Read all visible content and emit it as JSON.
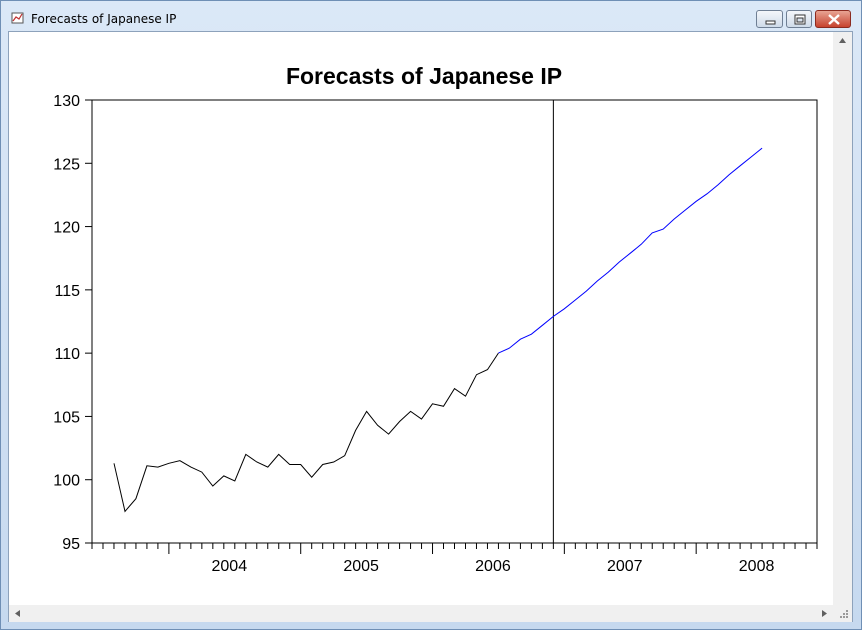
{
  "window": {
    "title": "Forecasts of Japanese IP"
  },
  "icons": {
    "app": "app-graph-icon",
    "minimize": "minimize-icon",
    "maximize": "maximize-icon",
    "close": "close-icon",
    "scroll_up": "scroll-up-arrow-icon",
    "scroll_left": "scroll-left-arrow-icon",
    "scroll_right": "scroll-right-arrow-icon",
    "resize_grip": "resize-grip-icon"
  },
  "colors": {
    "actual_line": "#000000",
    "forecast_line": "#0000ff",
    "window_close": "#c7432f"
  },
  "chart_data": {
    "type": "line",
    "title": "Forecasts of Japanese IP",
    "xlabel": "",
    "ylabel": "",
    "ylim": [
      95,
      130
    ],
    "yticks": [
      95,
      100,
      105,
      110,
      115,
      120,
      125,
      130
    ],
    "xlim": [
      "2003-06",
      "2008-12"
    ],
    "x_tick_labels": [
      "2004",
      "2005",
      "2006",
      "2007",
      "2008"
    ],
    "divider_at": "2006-12",
    "grid": false,
    "legend": "none",
    "x": [
      "2003-08",
      "2003-09",
      "2003-10",
      "2003-11",
      "2003-12",
      "2004-01",
      "2004-02",
      "2004-03",
      "2004-04",
      "2004-05",
      "2004-06",
      "2004-07",
      "2004-08",
      "2004-09",
      "2004-10",
      "2004-11",
      "2004-12",
      "2005-01",
      "2005-02",
      "2005-03",
      "2005-04",
      "2005-05",
      "2005-06",
      "2005-07",
      "2005-08",
      "2005-09",
      "2005-10",
      "2005-11",
      "2005-12",
      "2006-01",
      "2006-02",
      "2006-03",
      "2006-04",
      "2006-05",
      "2006-06",
      "2006-07",
      "2006-08",
      "2006-09",
      "2006-10",
      "2006-11",
      "2006-12",
      "2007-01",
      "2007-02",
      "2007-03",
      "2007-04",
      "2007-05",
      "2007-06",
      "2007-07",
      "2007-08",
      "2007-09",
      "2007-10",
      "2007-11",
      "2007-12",
      "2008-01",
      "2008-02",
      "2008-03",
      "2008-04",
      "2008-05",
      "2008-06",
      "2008-07",
      "2008-08",
      "2008-09",
      "2008-10",
      "2008-11",
      "2008-12"
    ],
    "series": [
      {
        "color": "#000000",
        "values": [
          101.3,
          97.5,
          98.5,
          101.1,
          101.0,
          101.3,
          101.5,
          101.0,
          100.6,
          99.5,
          100.3,
          99.9,
          102.0,
          101.4,
          101.0,
          102.0,
          101.2,
          101.2,
          100.2,
          101.2,
          101.4,
          101.9,
          103.9,
          105.4,
          104.3,
          103.6,
          104.6,
          105.4,
          104.8,
          106.0,
          105.8,
          107.2,
          106.6,
          108.3,
          108.7,
          110.0,
          null,
          null,
          null,
          null,
          null,
          null,
          null,
          null,
          null,
          null,
          null,
          null,
          null,
          null,
          null,
          null,
          null,
          null,
          null,
          null,
          null,
          null,
          null,
          null,
          null,
          null,
          null,
          null,
          null
        ]
      },
      {
        "color": "#0000ff",
        "values": [
          null,
          null,
          null,
          null,
          null,
          null,
          null,
          null,
          null,
          null,
          null,
          null,
          null,
          null,
          null,
          null,
          null,
          null,
          null,
          null,
          null,
          null,
          null,
          null,
          null,
          null,
          null,
          null,
          null,
          null,
          null,
          null,
          null,
          null,
          null,
          110.0,
          110.4,
          111.1,
          111.5,
          112.2,
          112.9,
          113.5,
          114.2,
          114.9,
          115.7,
          116.4,
          117.2,
          117.9,
          118.6,
          119.5,
          119.8,
          120.6,
          121.3,
          122.0,
          122.6,
          123.3,
          124.1,
          124.8,
          125.5,
          126.2,
          null,
          null,
          null,
          null,
          null
        ]
      }
    ]
  }
}
